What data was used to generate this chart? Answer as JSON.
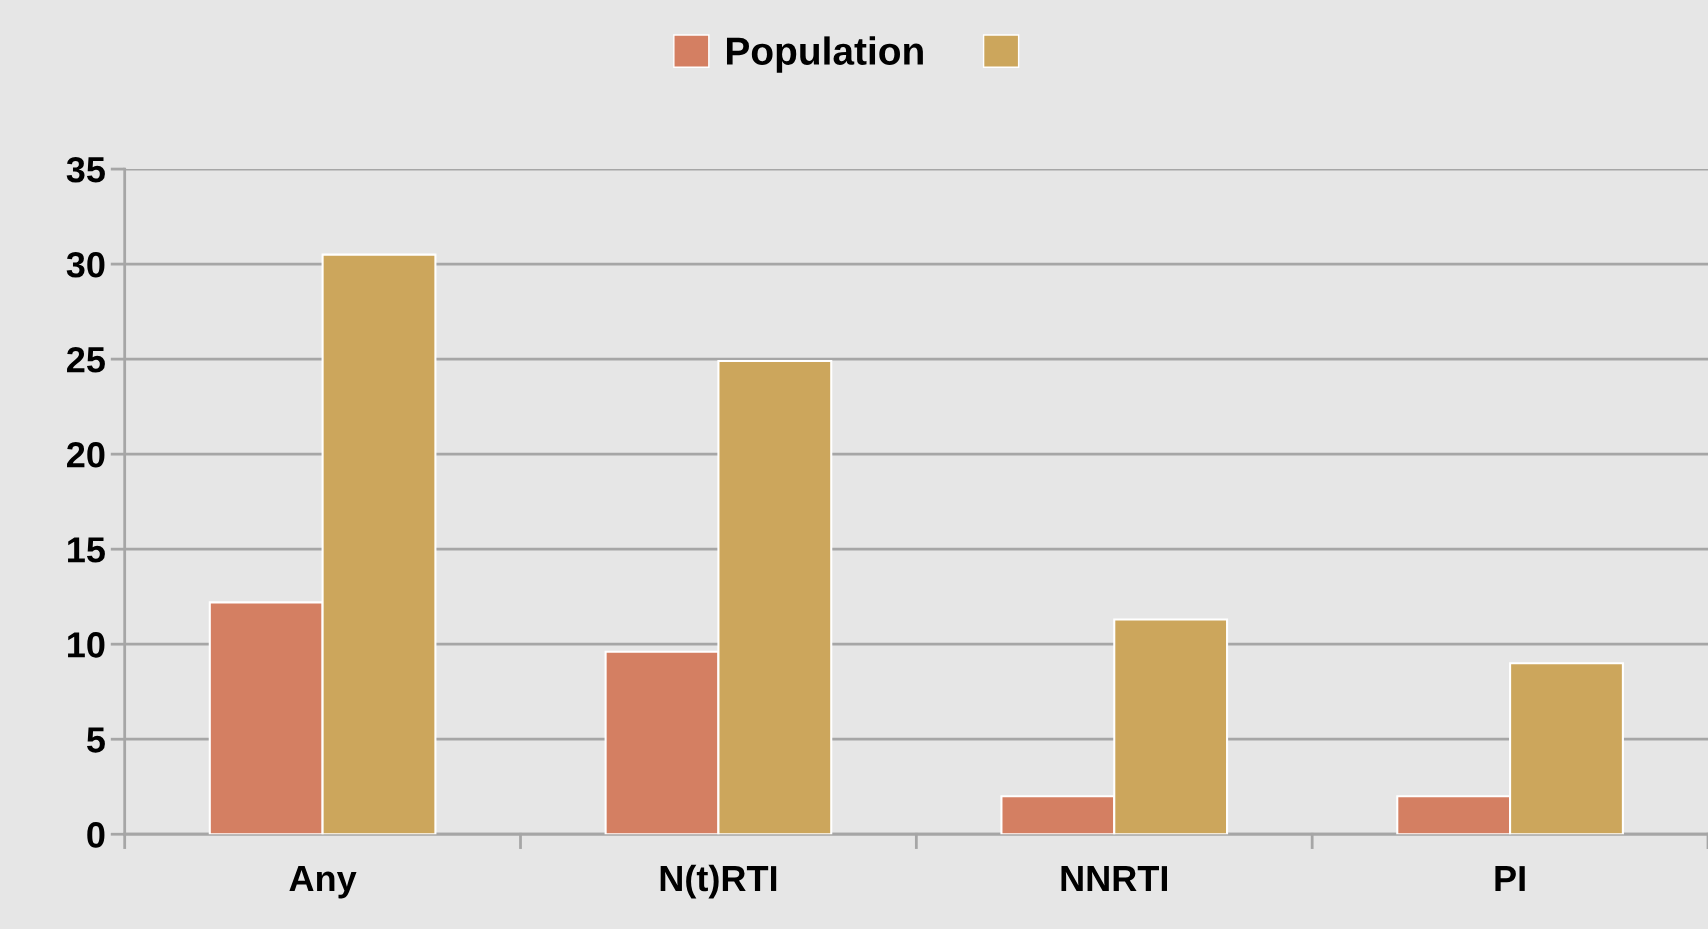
{
  "chart_data": {
    "type": "bar",
    "categories": [
      "Any",
      "N(t)RTI",
      "NNRTI",
      "PI"
    ],
    "series": [
      {
        "name": "Population",
        "color": "#d47f62",
        "values": [
          12.2,
          9.6,
          2.0,
          2.0
        ]
      },
      {
        "color": "#cca65c",
        "values": [
          30.5,
          24.9,
          11.3,
          9.0
        ]
      }
    ],
    "ylim": [
      0,
      35
    ],
    "yticks": [
      0,
      5,
      10,
      15,
      20,
      25,
      30,
      35
    ],
    "grid": "y",
    "legend": "top"
  }
}
